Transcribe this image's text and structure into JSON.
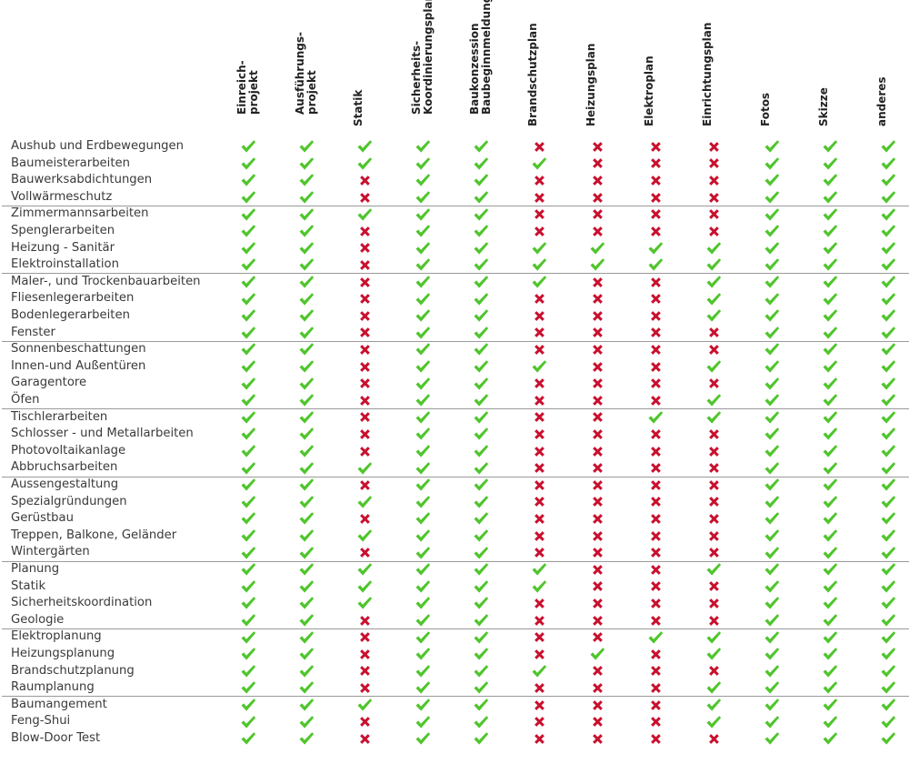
{
  "colors": {
    "check": "#4fc52c",
    "cross": "#c8102e"
  },
  "icons": {
    "yes": "check-mark-icon",
    "no": "cross-mark-icon"
  },
  "columns": [
    {
      "key": "einreichprojekt",
      "label": "Einreich-\nprojekt"
    },
    {
      "key": "ausfuehrungsprojekt",
      "label": "Ausführungs-\nprojekt"
    },
    {
      "key": "statik",
      "label": "Statik"
    },
    {
      "key": "sicherheitsplan",
      "label": "Sicherheits-\nKoordinierungsplan"
    },
    {
      "key": "baukonzession",
      "label": "Baukonzession\nBaubeginnmeldung"
    },
    {
      "key": "brandschutzplan",
      "label": "Brandschutzplan"
    },
    {
      "key": "heizungsplan",
      "label": "Heizungsplan"
    },
    {
      "key": "elektroplan",
      "label": "Elektroplan"
    },
    {
      "key": "einrichtungsplan",
      "label": "Einrichtungsplan"
    },
    {
      "key": "fotos",
      "label": "Fotos"
    },
    {
      "key": "skizze",
      "label": "Skizze"
    },
    {
      "key": "anderes",
      "label": "anderes"
    }
  ],
  "groups": [
    {
      "rows": [
        {
          "label": "Aushub und Erdbewegungen",
          "marks": [
            1,
            1,
            1,
            1,
            1,
            0,
            0,
            0,
            0,
            1,
            1,
            1
          ]
        },
        {
          "label": "Baumeisterarbeiten",
          "marks": [
            1,
            1,
            1,
            1,
            1,
            1,
            0,
            0,
            0,
            1,
            1,
            1
          ]
        },
        {
          "label": "Bauwerksabdichtungen",
          "marks": [
            1,
            1,
            0,
            1,
            1,
            0,
            0,
            0,
            0,
            1,
            1,
            1
          ]
        },
        {
          "label": "Vollwärmeschutz",
          "marks": [
            1,
            1,
            0,
            1,
            1,
            0,
            0,
            0,
            0,
            1,
            1,
            1
          ]
        }
      ]
    },
    {
      "rows": [
        {
          "label": "Zimmermannsarbeiten",
          "marks": [
            1,
            1,
            1,
            1,
            1,
            0,
            0,
            0,
            0,
            1,
            1,
            1
          ]
        },
        {
          "label": "Spenglerarbeiten",
          "marks": [
            1,
            1,
            0,
            1,
            1,
            0,
            0,
            0,
            0,
            1,
            1,
            1
          ]
        },
        {
          "label": "Heizung - Sanitär",
          "marks": [
            1,
            1,
            0,
            1,
            1,
            1,
            1,
            1,
            1,
            1,
            1,
            1
          ]
        },
        {
          "label": "Elektroinstallation",
          "marks": [
            1,
            1,
            0,
            1,
            1,
            1,
            1,
            1,
            1,
            1,
            1,
            1
          ]
        }
      ]
    },
    {
      "rows": [
        {
          "label": "Maler-, und Trockenbauarbeiten",
          "marks": [
            1,
            1,
            0,
            1,
            1,
            1,
            0,
            0,
            1,
            1,
            1,
            1
          ]
        },
        {
          "label": "Fliesenlegerarbeiten",
          "marks": [
            1,
            1,
            0,
            1,
            1,
            0,
            0,
            0,
            1,
            1,
            1,
            1
          ]
        },
        {
          "label": "Bodenlegerarbeiten",
          "marks": [
            1,
            1,
            0,
            1,
            1,
            0,
            0,
            0,
            1,
            1,
            1,
            1
          ]
        },
        {
          "label": "Fenster",
          "marks": [
            1,
            1,
            0,
            1,
            1,
            0,
            0,
            0,
            0,
            1,
            1,
            1
          ]
        }
      ]
    },
    {
      "rows": [
        {
          "label": "Sonnenbeschattungen",
          "marks": [
            1,
            1,
            0,
            1,
            1,
            0,
            0,
            0,
            0,
            1,
            1,
            1
          ]
        },
        {
          "label": "Innen-und Außentüren",
          "marks": [
            1,
            1,
            0,
            1,
            1,
            1,
            0,
            0,
            1,
            1,
            1,
            1
          ]
        },
        {
          "label": "Garagentore",
          "marks": [
            1,
            1,
            0,
            1,
            1,
            0,
            0,
            0,
            0,
            1,
            1,
            1
          ]
        },
        {
          "label": "Öfen",
          "marks": [
            1,
            1,
            0,
            1,
            1,
            0,
            0,
            0,
            1,
            1,
            1,
            1
          ]
        }
      ]
    },
    {
      "rows": [
        {
          "label": "Tischlerarbeiten",
          "marks": [
            1,
            1,
            0,
            1,
            1,
            0,
            0,
            1,
            1,
            1,
            1,
            1
          ]
        },
        {
          "label": "Schlosser - und Metallarbeiten",
          "marks": [
            1,
            1,
            0,
            1,
            1,
            0,
            0,
            0,
            0,
            1,
            1,
            1
          ]
        },
        {
          "label": "Photovoltaikanlage",
          "marks": [
            1,
            1,
            0,
            1,
            1,
            0,
            0,
            0,
            0,
            1,
            1,
            1
          ]
        },
        {
          "label": "Abbruchsarbeiten",
          "marks": [
            1,
            1,
            1,
            1,
            1,
            0,
            0,
            0,
            0,
            1,
            1,
            1
          ]
        }
      ]
    },
    {
      "rows": [
        {
          "label": "Aussengestaltung",
          "marks": [
            1,
            1,
            0,
            1,
            1,
            0,
            0,
            0,
            0,
            1,
            1,
            1
          ]
        },
        {
          "label": "Spezialgründungen",
          "marks": [
            1,
            1,
            1,
            1,
            1,
            0,
            0,
            0,
            0,
            1,
            1,
            1
          ]
        },
        {
          "label": "Gerüstbau",
          "marks": [
            1,
            1,
            0,
            1,
            1,
            0,
            0,
            0,
            0,
            1,
            1,
            1
          ]
        },
        {
          "label": "Treppen, Balkone, Geländer",
          "marks": [
            1,
            1,
            1,
            1,
            1,
            0,
            0,
            0,
            0,
            1,
            1,
            1
          ]
        },
        {
          "label": "Wintergärten",
          "marks": [
            1,
            1,
            0,
            1,
            1,
            0,
            0,
            0,
            0,
            1,
            1,
            1
          ]
        }
      ]
    },
    {
      "rows": [
        {
          "label": "Planung",
          "marks": [
            1,
            1,
            1,
            1,
            1,
            1,
            0,
            0,
            1,
            1,
            1,
            1
          ]
        },
        {
          "label": "Statik",
          "marks": [
            1,
            1,
            1,
            1,
            1,
            1,
            0,
            0,
            0,
            1,
            1,
            1
          ]
        },
        {
          "label": "Sicherheitskoordination",
          "marks": [
            1,
            1,
            1,
            1,
            1,
            0,
            0,
            0,
            0,
            1,
            1,
            1
          ]
        },
        {
          "label": "Geologie",
          "marks": [
            1,
            1,
            0,
            1,
            1,
            0,
            0,
            0,
            0,
            1,
            1,
            1
          ]
        }
      ]
    },
    {
      "rows": [
        {
          "label": "Elektroplanung",
          "marks": [
            1,
            1,
            0,
            1,
            1,
            0,
            0,
            1,
            1,
            1,
            1,
            1
          ]
        },
        {
          "label": "Heizungsplanung",
          "marks": [
            1,
            1,
            0,
            1,
            1,
            0,
            1,
            0,
            1,
            1,
            1,
            1
          ]
        },
        {
          "label": "Brandschutzplanung",
          "marks": [
            1,
            1,
            0,
            1,
            1,
            1,
            0,
            0,
            0,
            1,
            1,
            1
          ]
        },
        {
          "label": "Raumplanung",
          "marks": [
            1,
            1,
            0,
            1,
            1,
            0,
            0,
            0,
            1,
            1,
            1,
            1
          ]
        }
      ]
    },
    {
      "rows": [
        {
          "label": "Baumangement",
          "marks": [
            1,
            1,
            1,
            1,
            1,
            0,
            0,
            0,
            1,
            1,
            1,
            1
          ]
        },
        {
          "label": "Feng-Shui",
          "marks": [
            1,
            1,
            0,
            1,
            1,
            0,
            0,
            0,
            1,
            1,
            1,
            1
          ]
        },
        {
          "label": "Blow-Door Test",
          "marks": [
            1,
            1,
            0,
            1,
            1,
            0,
            0,
            0,
            0,
            1,
            1,
            1
          ]
        }
      ]
    }
  ]
}
